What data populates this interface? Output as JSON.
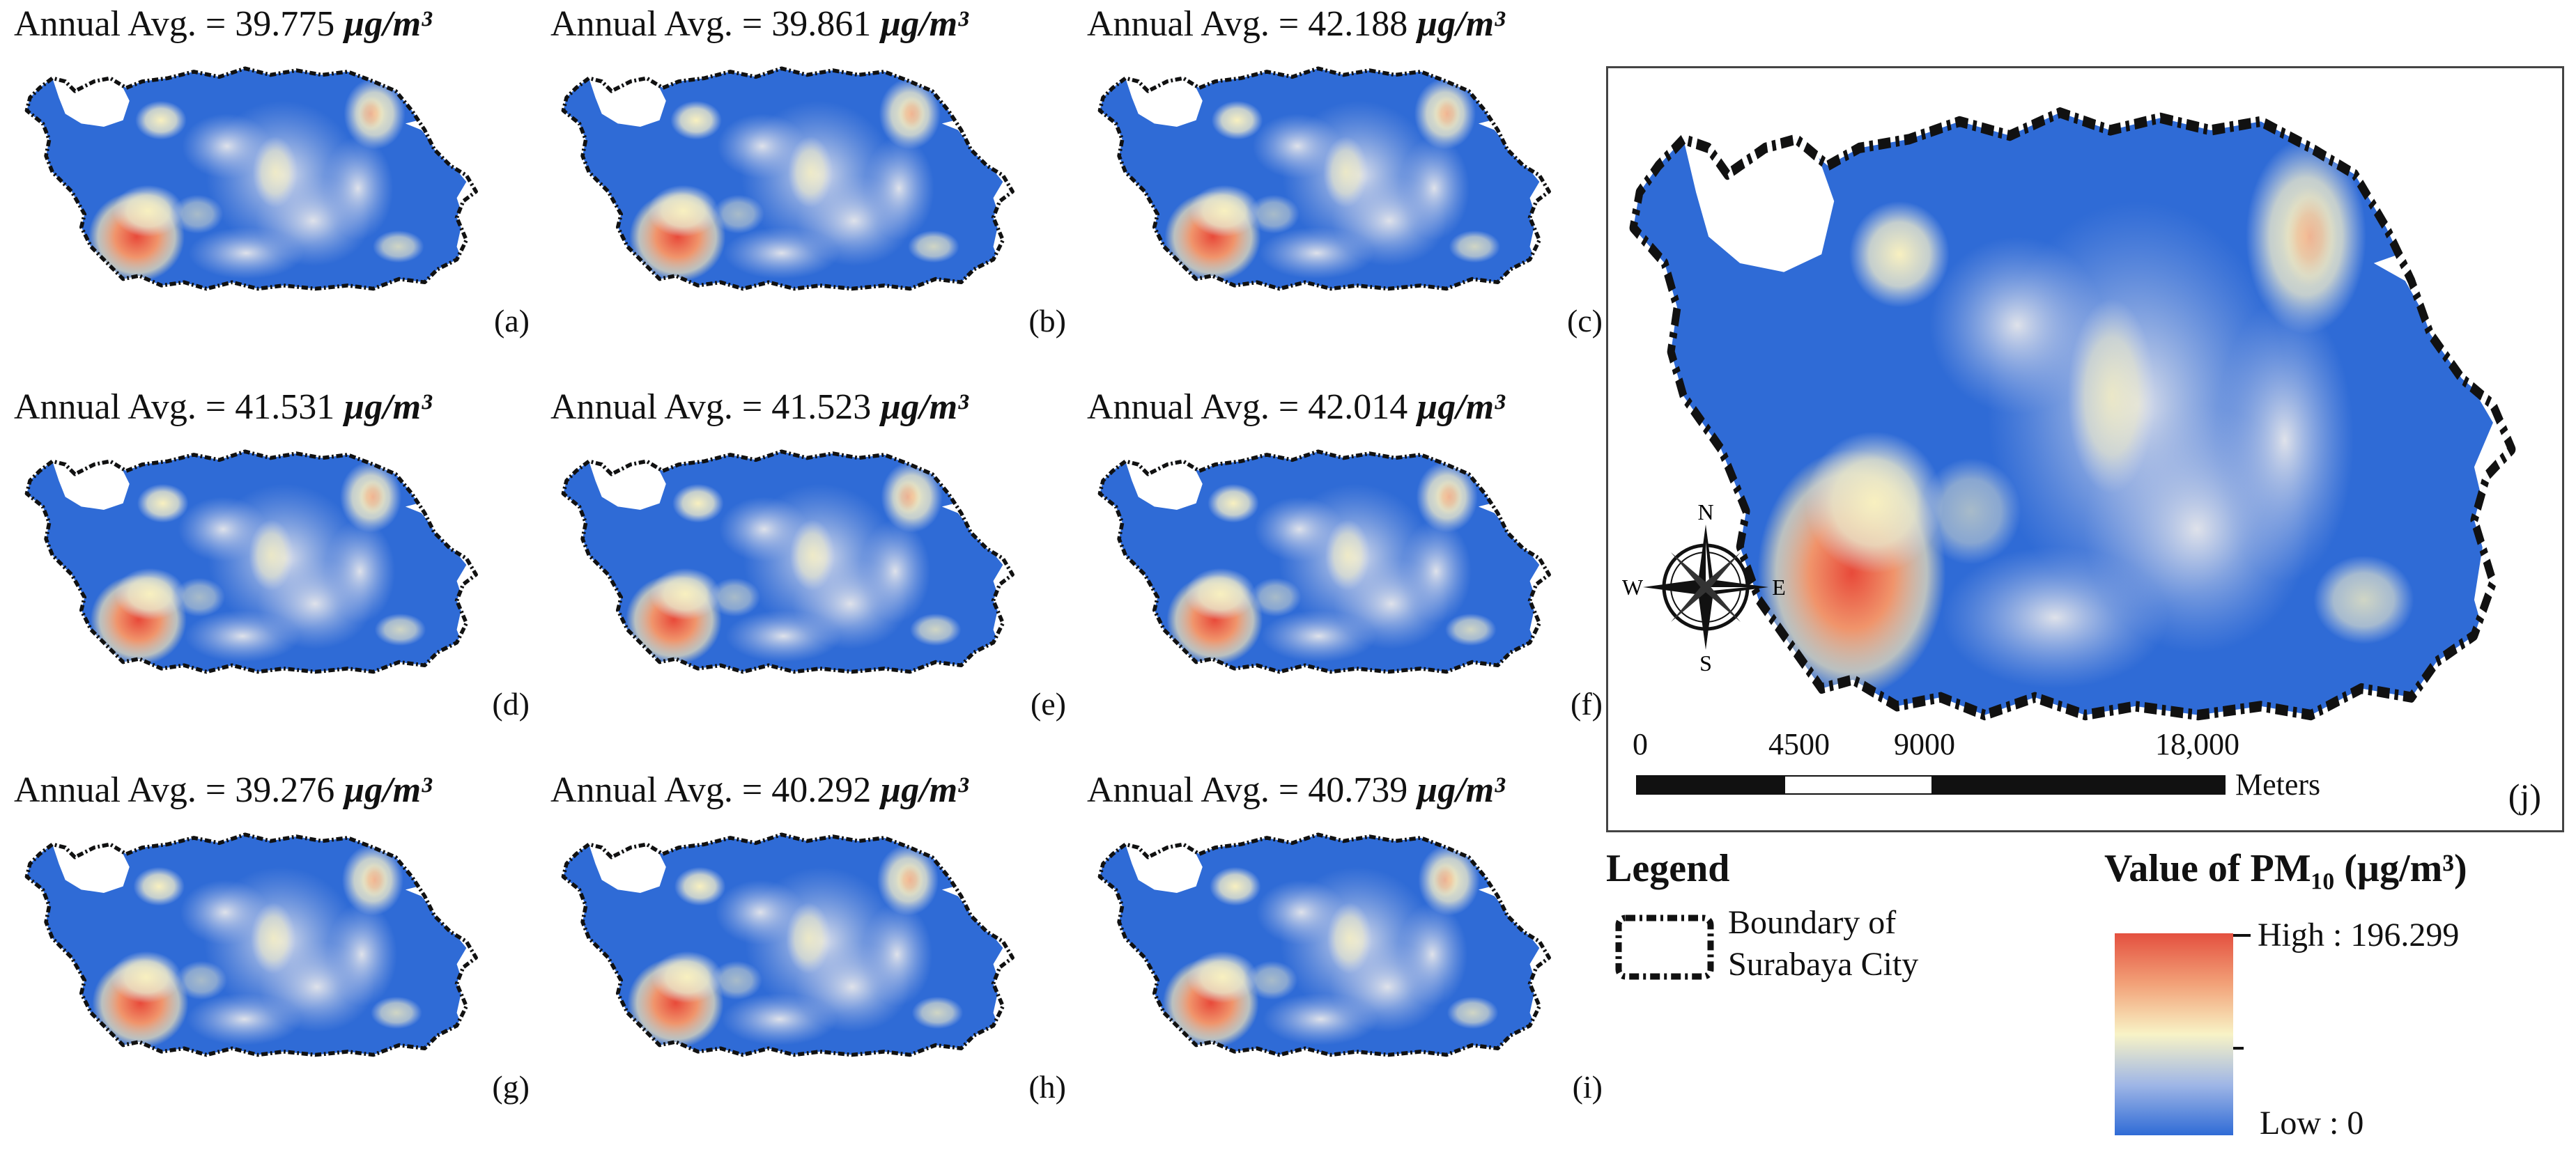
{
  "panels": [
    {
      "label": "(a)",
      "title_prefix": "Annual Avg. = 39.775",
      "unit": "µg/m³"
    },
    {
      "label": "(b)",
      "title_prefix": "Annual Avg. = 39.861",
      "unit": "µg/m³"
    },
    {
      "label": "(c)",
      "title_prefix": "Annual Avg. = 42.188",
      "unit": "µg/m³"
    },
    {
      "label": "(d)",
      "title_prefix": "Annual Avg. = 41.531",
      "unit": "µg/m³"
    },
    {
      "label": "(e)",
      "title_prefix": "Annual Avg. = 41.523",
      "unit": "µg/m³"
    },
    {
      "label": "(f)",
      "title_prefix": "Annual Avg. = 42.014",
      "unit": "µg/m³"
    },
    {
      "label": "(g)",
      "title_prefix": "Annual Avg. = 39.276",
      "unit": "µg/m³"
    },
    {
      "label": "(h)",
      "title_prefix": "Annual Avg. = 40.292",
      "unit": "µg/m³"
    },
    {
      "label": "(i)",
      "title_prefix": "Annual Avg. = 40.739",
      "unit": "µg/m³"
    }
  ],
  "main_map": {
    "label": "(j)",
    "compass": {
      "n": "N",
      "s": "S",
      "e": "E",
      "w": "W"
    },
    "scale": {
      "ticks": [
        "0",
        "4500",
        "9000",
        "18,000"
      ],
      "unit": "Meters"
    }
  },
  "legend": {
    "title": "Legend",
    "boundary_label_line1": "Boundary of",
    "boundary_label_line2": "Surabaya City",
    "value_title": "Value of PM₁₀ (µg/m³)",
    "high_label": "High : 196.299",
    "low_label": "Low : 0"
  },
  "colors": {
    "low": "#2f6bd6",
    "mid": "#f4f1c2",
    "high": "#e8583f",
    "boundary": "#111111"
  }
}
